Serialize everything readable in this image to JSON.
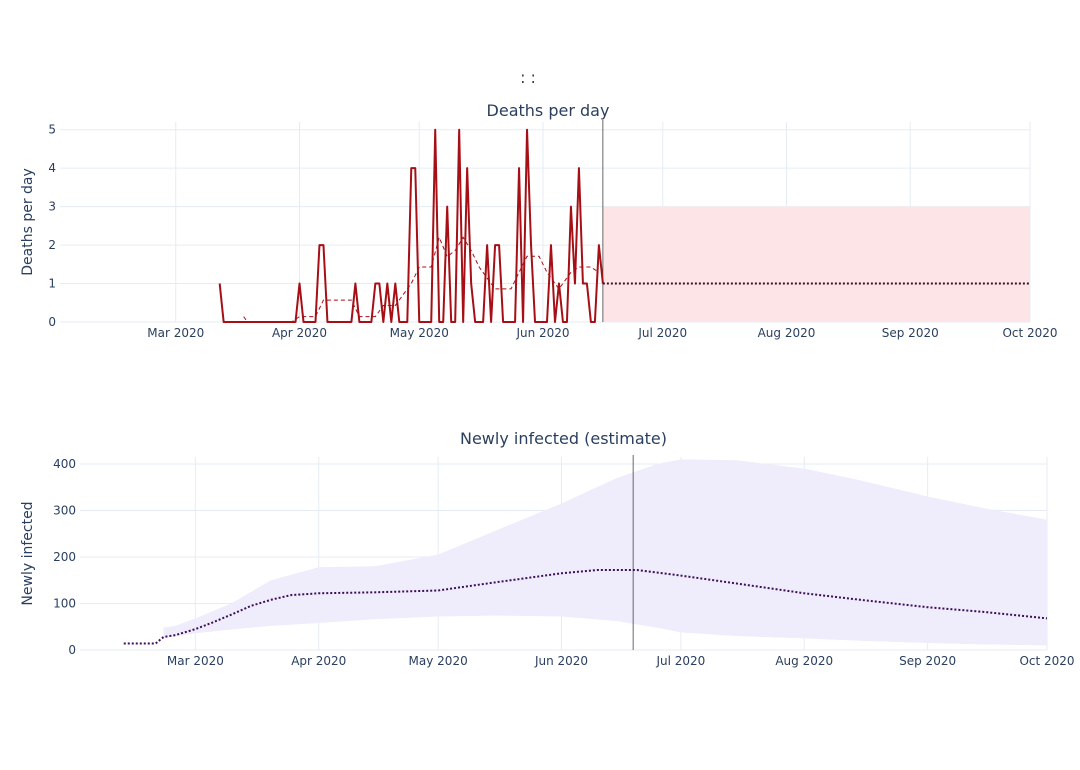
{
  "figure": {
    "title": ":          :",
    "chart_data": [
      {
        "type": "line",
        "title": "Deaths per day",
        "ylabel": "Deaths per day",
        "xlabel": "",
        "x_ticks": [
          "Mar 2020",
          "Apr 2020",
          "May 2020",
          "Jun 2020",
          "Jul 2020",
          "Aug 2020",
          "Sep 2020",
          "Oct 2020"
        ],
        "x_range": [
          "2020-02-01",
          "2020-10-01"
        ],
        "y_ticks": [
          0,
          1,
          2,
          3,
          4,
          5
        ],
        "ylim": [
          0,
          5.2
        ],
        "grid": true,
        "forecast_start": "2020-06-16",
        "colors": {
          "observed": "#a50f15",
          "forecast": "#3d0e28",
          "band": "#fde5e7"
        },
        "series": [
          {
            "style": "observed",
            "points": [
              [
                "2020-03-12",
                1
              ],
              [
                "2020-03-13",
                0
              ],
              [
                "2020-03-14",
                0
              ],
              [
                "2020-03-15",
                0
              ],
              [
                "2020-03-16",
                0
              ],
              [
                "2020-03-17",
                0
              ],
              [
                "2020-03-18",
                0
              ],
              [
                "2020-03-19",
                0
              ],
              [
                "2020-03-20",
                0
              ],
              [
                "2020-03-21",
                0
              ],
              [
                "2020-03-22",
                0
              ],
              [
                "2020-03-23",
                0
              ],
              [
                "2020-03-24",
                0
              ],
              [
                "2020-03-25",
                0
              ],
              [
                "2020-03-26",
                0
              ],
              [
                "2020-03-27",
                0
              ],
              [
                "2020-03-28",
                0
              ],
              [
                "2020-03-29",
                0
              ],
              [
                "2020-03-30",
                0
              ],
              [
                "2020-03-31",
                0
              ],
              [
                "2020-04-01",
                1
              ],
              [
                "2020-04-02",
                0
              ],
              [
                "2020-04-03",
                0
              ],
              [
                "2020-04-04",
                0
              ],
              [
                "2020-04-05",
                0
              ],
              [
                "2020-04-06",
                2
              ],
              [
                "2020-04-07",
                2
              ],
              [
                "2020-04-08",
                0
              ],
              [
                "2020-04-09",
                0
              ],
              [
                "2020-04-10",
                0
              ],
              [
                "2020-04-11",
                0
              ],
              [
                "2020-04-12",
                0
              ],
              [
                "2020-04-13",
                0
              ],
              [
                "2020-04-14",
                0
              ],
              [
                "2020-04-15",
                1
              ],
              [
                "2020-04-16",
                0
              ],
              [
                "2020-04-17",
                0
              ],
              [
                "2020-04-18",
                0
              ],
              [
                "2020-04-19",
                0
              ],
              [
                "2020-04-20",
                1
              ],
              [
                "2020-04-21",
                1
              ],
              [
                "2020-04-22",
                0
              ],
              [
                "2020-04-23",
                1
              ],
              [
                "2020-04-24",
                0
              ],
              [
                "2020-04-25",
                1
              ],
              [
                "2020-04-26",
                0
              ],
              [
                "2020-04-27",
                0
              ],
              [
                "2020-04-28",
                0
              ],
              [
                "2020-04-29",
                4
              ],
              [
                "2020-04-30",
                4
              ],
              [
                "2020-05-01",
                0
              ],
              [
                "2020-05-02",
                0
              ],
              [
                "2020-05-03",
                0
              ],
              [
                "2020-05-04",
                0
              ],
              [
                "2020-05-05",
                5
              ],
              [
                "2020-05-06",
                0
              ],
              [
                "2020-05-07",
                0
              ],
              [
                "2020-05-08",
                3
              ],
              [
                "2020-05-09",
                0
              ],
              [
                "2020-05-10",
                0
              ],
              [
                "2020-05-11",
                5
              ],
              [
                "2020-05-12",
                0
              ],
              [
                "2020-05-13",
                4
              ],
              [
                "2020-05-14",
                1
              ],
              [
                "2020-05-15",
                0
              ],
              [
                "2020-05-16",
                0
              ],
              [
                "2020-05-17",
                0
              ],
              [
                "2020-05-18",
                2
              ],
              [
                "2020-05-19",
                0
              ],
              [
                "2020-05-20",
                2
              ],
              [
                "2020-05-21",
                2
              ],
              [
                "2020-05-22",
                0
              ],
              [
                "2020-05-23",
                0
              ],
              [
                "2020-05-24",
                0
              ],
              [
                "2020-05-25",
                0
              ],
              [
                "2020-05-26",
                4
              ],
              [
                "2020-05-27",
                0
              ],
              [
                "2020-05-28",
                5
              ],
              [
                "2020-05-29",
                2
              ],
              [
                "2020-05-30",
                0
              ],
              [
                "2020-05-31",
                0
              ],
              [
                "2020-06-01",
                0
              ],
              [
                "2020-06-02",
                0
              ],
              [
                "2020-06-03",
                2
              ],
              [
                "2020-06-04",
                0
              ],
              [
                "2020-06-05",
                1
              ],
              [
                "2020-06-06",
                0
              ],
              [
                "2020-06-07",
                0
              ],
              [
                "2020-06-08",
                3
              ],
              [
                "2020-06-09",
                1
              ],
              [
                "2020-06-10",
                4
              ],
              [
                "2020-06-11",
                1
              ],
              [
                "2020-06-12",
                1
              ],
              [
                "2020-06-13",
                0
              ],
              [
                "2020-06-14",
                0
              ],
              [
                "2020-06-15",
                2
              ],
              [
                "2020-06-16",
                1
              ]
            ]
          },
          {
            "style": "rolling_mean",
            "points": [
              [
                "2020-03-18",
                0.14
              ],
              [
                "2020-03-19",
                0
              ],
              [
                "2020-03-30",
                0
              ],
              [
                "2020-04-01",
                0.14
              ],
              [
                "2020-04-05",
                0.14
              ],
              [
                "2020-04-07",
                0.57
              ],
              [
                "2020-04-08",
                0.57
              ],
              [
                "2020-04-14",
                0.57
              ],
              [
                "2020-04-16",
                0.14
              ],
              [
                "2020-04-20",
                0.14
              ],
              [
                "2020-04-22",
                0.43
              ],
              [
                "2020-04-25",
                0.43
              ],
              [
                "2020-04-29",
                1
              ],
              [
                "2020-05-01",
                1.43
              ],
              [
                "2020-05-04",
                1.43
              ],
              [
                "2020-05-06",
                2.2
              ],
              [
                "2020-05-08",
                1.7
              ],
              [
                "2020-05-10",
                1.86
              ],
              [
                "2020-05-12",
                2.2
              ],
              [
                "2020-05-14",
                1.86
              ],
              [
                "2020-05-16",
                1.43
              ],
              [
                "2020-05-18",
                1.14
              ],
              [
                "2020-05-20",
                0.86
              ],
              [
                "2020-05-22",
                0.86
              ],
              [
                "2020-05-24",
                0.86
              ],
              [
                "2020-05-26",
                1.29
              ],
              [
                "2020-05-28",
                1.71
              ],
              [
                "2020-05-31",
                1.71
              ],
              [
                "2020-06-02",
                1.29
              ],
              [
                "2020-06-05",
                0.86
              ],
              [
                "2020-06-08",
                1.29
              ],
              [
                "2020-06-10",
                1.43
              ],
              [
                "2020-06-13",
                1.43
              ],
              [
                "2020-06-15",
                1.29
              ]
            ]
          },
          {
            "style": "forecast",
            "points": [
              [
                "2020-06-16",
                1
              ],
              [
                "2020-10-01",
                1
              ]
            ],
            "band": {
              "x": [
                "2020-06-16",
                "2020-10-01"
              ],
              "lower": 0,
              "upper": 3
            }
          }
        ]
      },
      {
        "type": "line",
        "title": "Newly infected (estimate)",
        "ylabel": "Newly infected",
        "xlabel": "",
        "x_ticks": [
          "Mar 2020",
          "Apr 2020",
          "May 2020",
          "Jun 2020",
          "Jul 2020",
          "Aug 2020",
          "Sep 2020",
          "Oct 2020"
        ],
        "x_range": [
          "2020-02-01",
          "2020-10-01"
        ],
        "y_ticks": [
          0,
          100,
          200,
          300,
          400
        ],
        "ylim": [
          0,
          415
        ],
        "grid": true,
        "forecast_start": "2020-06-19",
        "colors": {
          "line": "#3d0e5c",
          "band": "#efecfb"
        },
        "series": [
          {
            "style": "estimate",
            "points": [
              [
                "2020-02-12",
                14
              ],
              [
                "2020-02-20",
                14
              ],
              [
                "2020-02-22",
                28
              ],
              [
                "2020-02-25",
                32
              ],
              [
                "2020-03-01",
                45
              ],
              [
                "2020-03-05",
                58
              ],
              [
                "2020-03-10",
                76
              ],
              [
                "2020-03-15",
                95
              ],
              [
                "2020-03-20",
                108
              ],
              [
                "2020-03-25",
                118
              ],
              [
                "2020-04-01",
                122
              ],
              [
                "2020-04-15",
                124
              ],
              [
                "2020-05-01",
                128
              ],
              [
                "2020-05-15",
                145
              ],
              [
                "2020-06-01",
                165
              ],
              [
                "2020-06-10",
                172
              ],
              [
                "2020-06-20",
                172
              ],
              [
                "2020-07-01",
                160
              ],
              [
                "2020-07-15",
                143
              ],
              [
                "2020-08-01",
                122
              ],
              [
                "2020-08-15",
                108
              ],
              [
                "2020-09-01",
                92
              ],
              [
                "2020-09-15",
                82
              ],
              [
                "2020-10-01",
                68
              ]
            ]
          }
        ],
        "band": {
          "x": [
            "2020-02-22",
            "2020-02-25",
            "2020-03-01",
            "2020-03-10",
            "2020-03-20",
            "2020-04-01",
            "2020-04-15",
            "2020-05-01",
            "2020-05-15",
            "2020-06-01",
            "2020-06-15",
            "2020-06-25",
            "2020-07-01",
            "2020-07-15",
            "2020-08-01",
            "2020-08-15",
            "2020-09-01",
            "2020-09-15",
            "2020-10-01"
          ],
          "lower": [
            25,
            30,
            36,
            44,
            52,
            58,
            66,
            72,
            74,
            72,
            62,
            48,
            38,
            30,
            25,
            20,
            15,
            12,
            10
          ],
          "upper": [
            48,
            52,
            68,
            100,
            150,
            178,
            180,
            205,
            255,
            315,
            370,
            400,
            410,
            408,
            390,
            365,
            330,
            305,
            280
          ]
        }
      }
    ]
  }
}
